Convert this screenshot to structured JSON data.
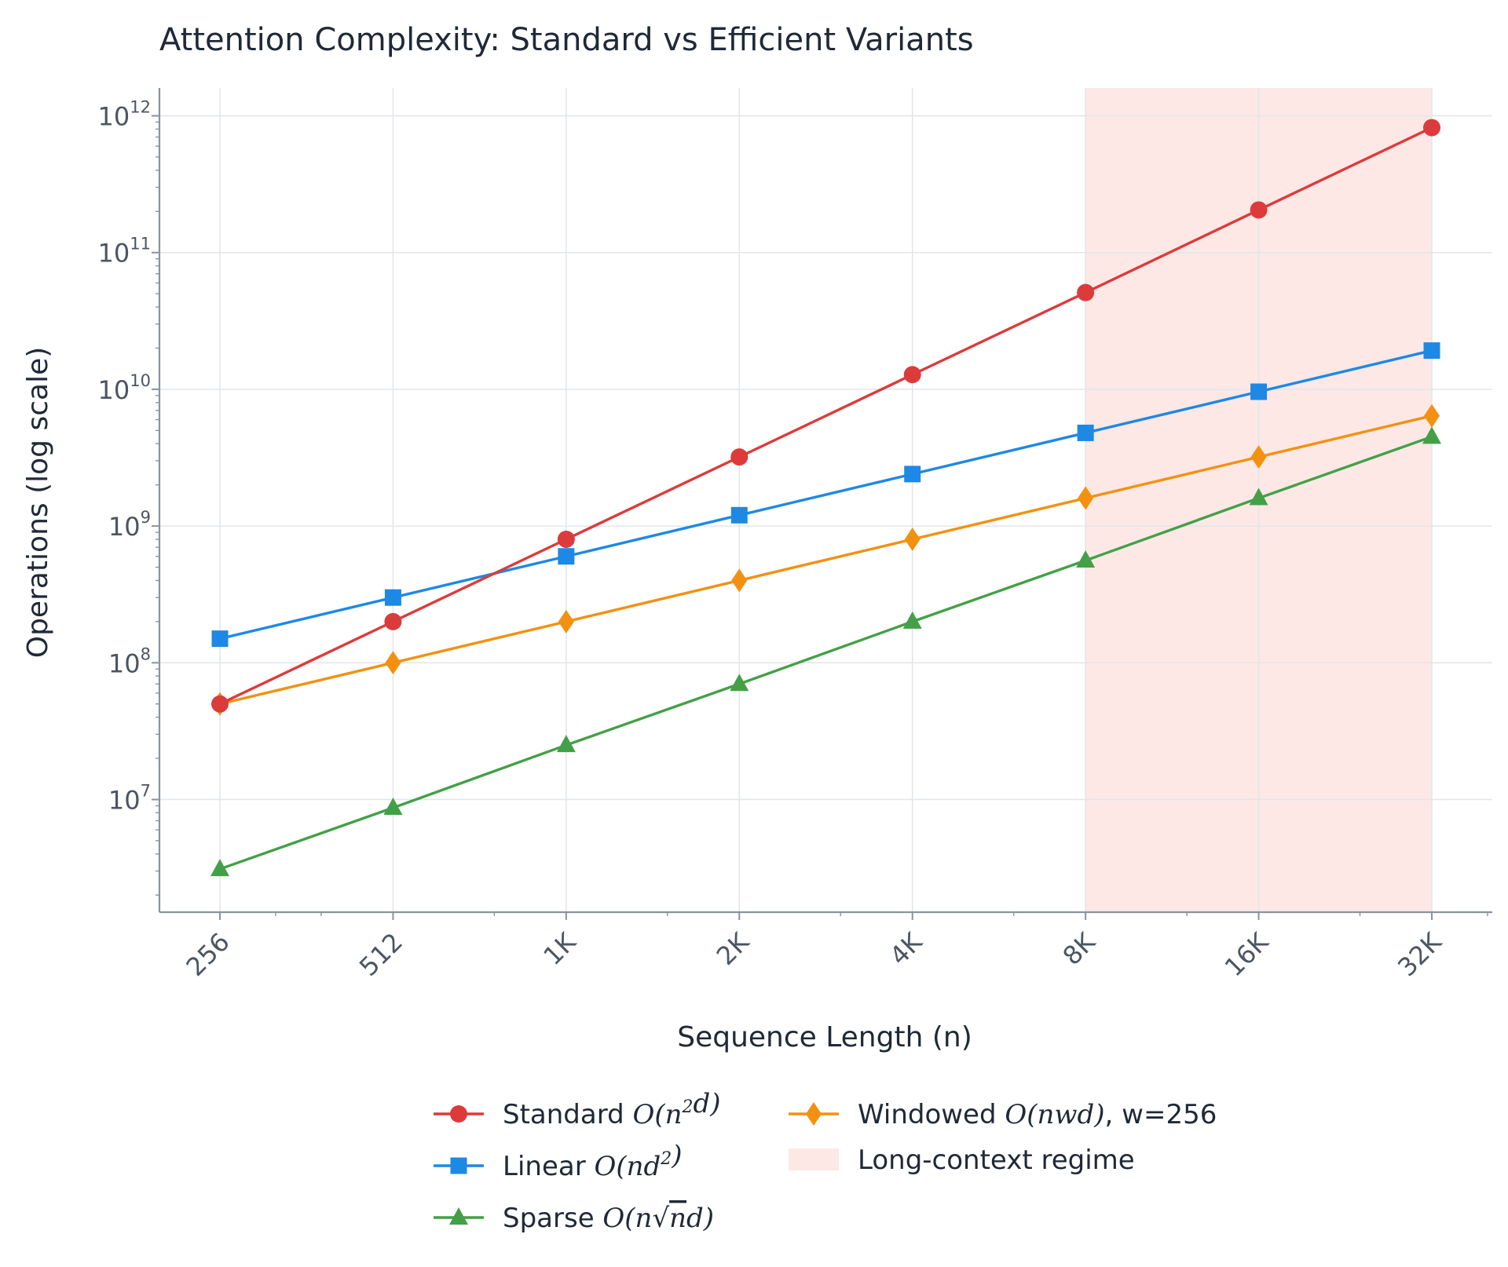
{
  "chart_data": {
    "type": "line",
    "title": "Attention Complexity: Standard vs Efficient Variants",
    "xlabel": "Sequence Length (n)",
    "ylabel": "Operations (log scale)",
    "x": [
      256,
      512,
      1024,
      2048,
      4096,
      8192,
      16384,
      32768
    ],
    "x_tick_labels": [
      "256",
      "512",
      "1K",
      "2K",
      "4K",
      "8K",
      "16K",
      "32K"
    ],
    "x_scale": "log2",
    "y_scale": "log10",
    "ylim": [
      1500000.0,
      1600000000000.0
    ],
    "y_ticks": [
      {
        "base": "10",
        "exp": "7",
        "value": 10000000.0
      },
      {
        "base": "10",
        "exp": "8",
        "value": 100000000.0
      },
      {
        "base": "10",
        "exp": "9",
        "value": 1000000000.0
      },
      {
        "base": "10",
        "exp": "10",
        "value": 10000000000.0
      },
      {
        "base": "10",
        "exp": "11",
        "value": 100000000000.0
      },
      {
        "base": "10",
        "exp": "12",
        "value": 1000000000000.0
      }
    ],
    "grid": true,
    "legend_position": "bottom-center",
    "series": [
      {
        "key": "standard",
        "color": "#dc3b3b",
        "marker": "circle",
        "values": [
          50000000.0,
          200000000.0,
          800000000.0,
          3200000000.0,
          12800000000.0,
          51000000000.0,
          205000000000.0,
          820000000000.0
        ],
        "legend": {
          "prefix": "Standard ",
          "math": [
            [
              "O(n",
              ""
            ],
            [
              "2",
              "sup"
            ],
            [
              "d)",
              ""
            ]
          ],
          "suffix": ""
        }
      },
      {
        "key": "linear",
        "color": "#1e88e5",
        "marker": "square",
        "values": [
          150000000.0,
          300000000.0,
          600000000.0,
          1200000000.0,
          2400000000.0,
          4800000000.0,
          9600000000.0,
          19200000000.0
        ],
        "legend": {
          "prefix": "Linear ",
          "math": [
            [
              "O(nd",
              ""
            ],
            [
              "2",
              "sup"
            ],
            [
              ")",
              ""
            ]
          ],
          "suffix": ""
        }
      },
      {
        "key": "sparse",
        "color": "#43a047",
        "marker": "triangle",
        "values": [
          3100000.0,
          8700000.0,
          25000000.0,
          70000000.0,
          200000000.0,
          560000000.0,
          1600000000.0,
          4500000000.0
        ],
        "legend": {
          "prefix": "Sparse ",
          "math": [
            [
              "O(n√",
              ""
            ],
            [
              "n",
              "over"
            ],
            [
              "d)",
              ""
            ]
          ],
          "suffix": ""
        }
      },
      {
        "key": "windowed",
        "color": "#f29111",
        "marker": "diamond",
        "values": [
          50000000.0,
          100000000.0,
          200000000.0,
          400000000.0,
          800000000.0,
          1600000000.0,
          3200000000.0,
          6400000000.0
        ],
        "legend": {
          "prefix": "Windowed ",
          "math": [
            [
              "O(nwd)",
              ""
            ]
          ],
          "suffix": ", w=256"
        }
      }
    ],
    "shaded_region": {
      "x_start": 8192,
      "x_end": 32768,
      "color": "#fde8e6",
      "label": "Long-context regime"
    }
  }
}
